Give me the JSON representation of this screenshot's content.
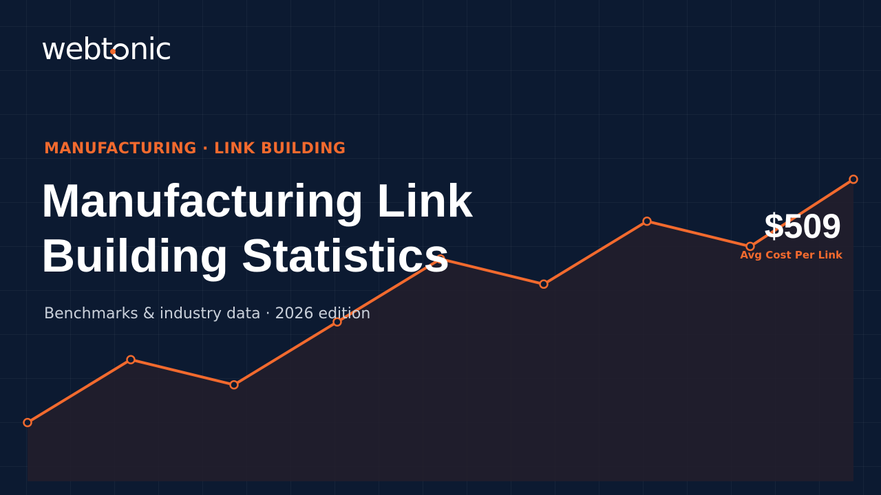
{
  "brand": {
    "name_before": "webt",
    "name_after": "nic",
    "accent_color": "#f26a2e"
  },
  "hero": {
    "eyebrow": "MANUFACTURING · LINK BUILDING",
    "title_line1": "Manufacturing Link",
    "title_line2": "Building Statistics",
    "subtitle": "Benchmarks & industry data · 2026 edition"
  },
  "stat": {
    "value": "$509",
    "label": "Avg Cost Per Link"
  },
  "chart_data": {
    "type": "area",
    "values": [
      0.14,
      0.29,
      0.23,
      0.38,
      0.53,
      0.47,
      0.62,
      0.56,
      0.72
    ],
    "ylim": [
      0,
      1
    ],
    "line_color": "#f26a2e",
    "fill_color": "#231f2b",
    "grid": true
  }
}
